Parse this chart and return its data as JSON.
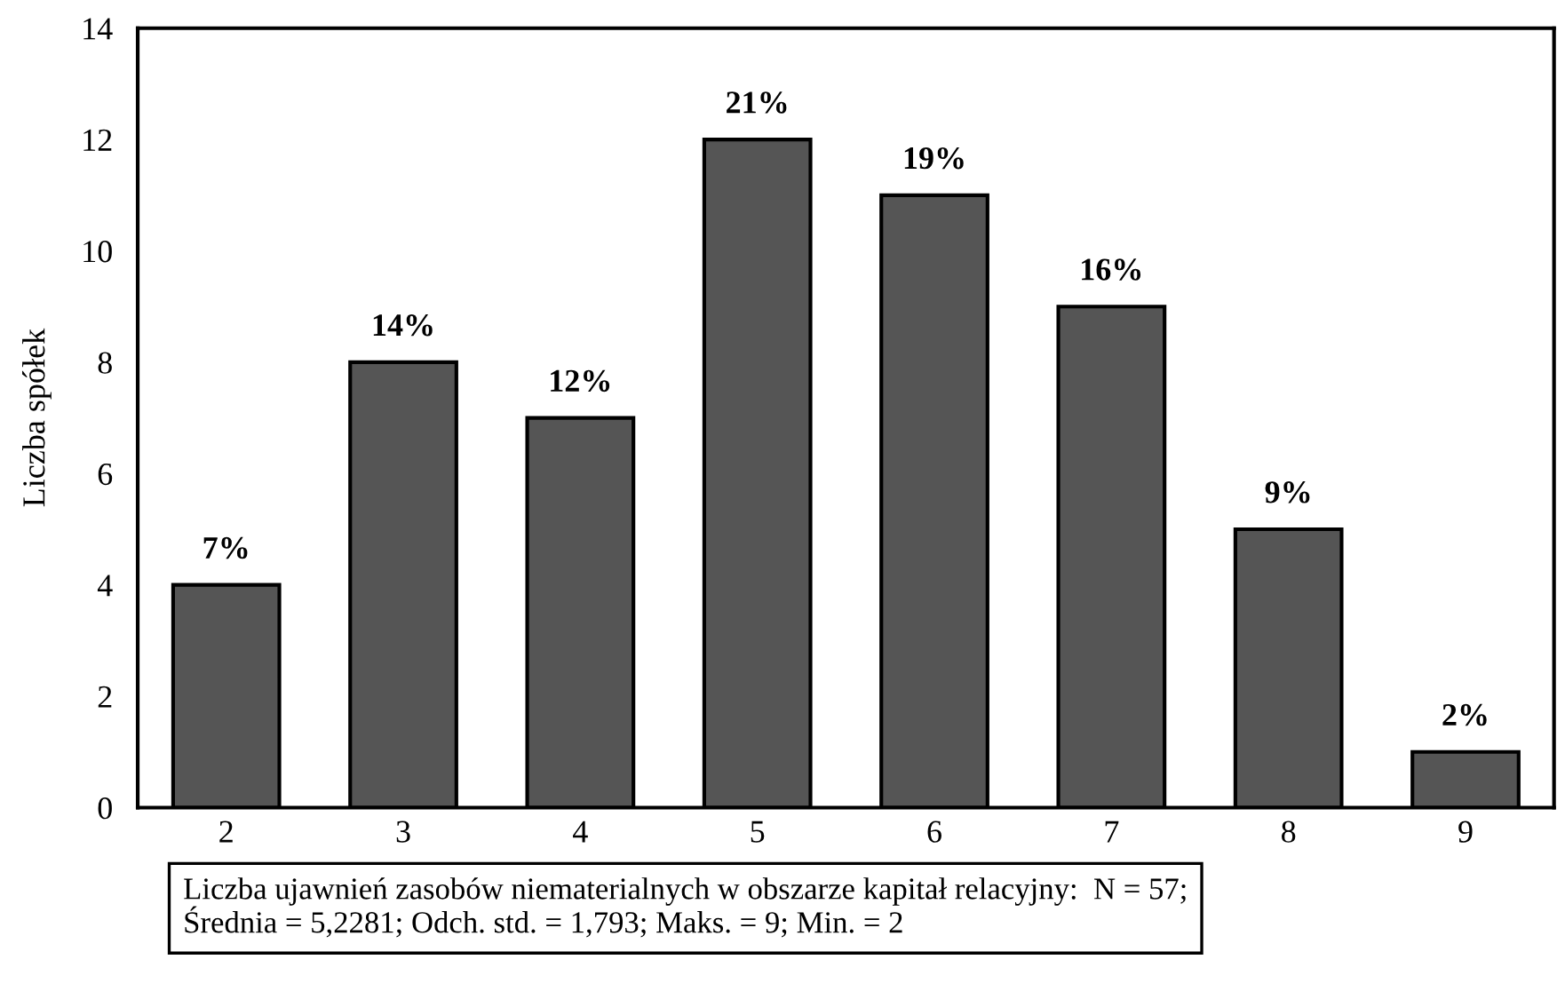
{
  "chart_data": {
    "type": "bar",
    "ylabel": "Liczba spółek",
    "categories": [
      "2",
      "3",
      "4",
      "5",
      "6",
      "7",
      "8",
      "9"
    ],
    "values": [
      4,
      8,
      7,
      12,
      11,
      9,
      5,
      1
    ],
    "color": "#555555",
    "ylim": [
      0,
      14
    ],
    "yticks": [
      0,
      2,
      4,
      6,
      8,
      10,
      12,
      14
    ],
    "grid": false,
    "legend": false,
    "annotations": [
      {
        "text": "7%",
        "x": "2",
        "y": 4
      },
      {
        "text": "14%",
        "x": "3",
        "y": 8
      },
      {
        "text": "12%",
        "x": "4",
        "y": 7
      },
      {
        "text": "21%",
        "x": "5",
        "y": 12
      },
      {
        "text": "19%",
        "x": "6",
        "y": 11
      },
      {
        "text": "16%",
        "x": "7",
        "y": 9
      },
      {
        "text": "9%",
        "x": "8",
        "y": 5
      },
      {
        "text": "2%",
        "x": "9",
        "y": 1
      },
      "Liczba ujawnień zasobów niematerialnych w obszarze kapitał relacyjny:  N = 57;\nŚrednia = 5,2281; Odch. std. = 1,793; Maks. = 9; Min. = 2"
    ]
  }
}
